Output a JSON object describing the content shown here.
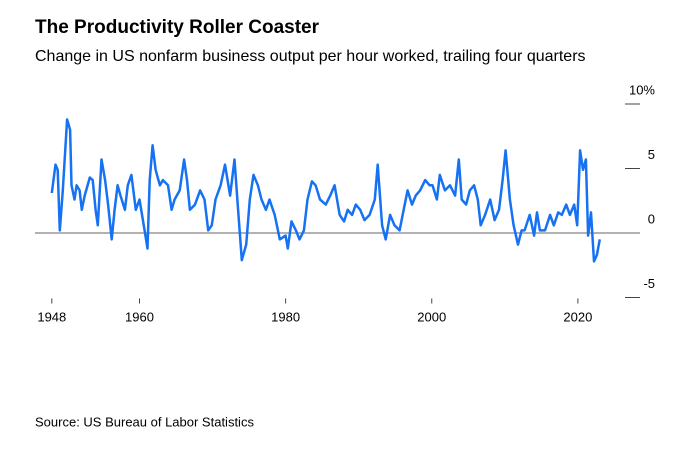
{
  "chart_data": {
    "type": "line",
    "title": "The Productivity Roller Coaster",
    "subtitle": "Change in US nonfarm business output per hour worked, trailing four quarters",
    "source": "Source: US Bureau of Labor Statistics",
    "x": [
      1948.0,
      1948.5,
      1948.8,
      1949.1,
      1949.5,
      1950.1,
      1950.5,
      1950.7,
      1951.1,
      1951.4,
      1951.8,
      1952.1,
      1952.5,
      1953.2,
      1953.6,
      1954.0,
      1954.3,
      1954.8,
      1955.3,
      1955.7,
      1956.2,
      1956.6,
      1957.0,
      1957.4,
      1958.0,
      1958.4,
      1958.9,
      1959.5,
      1960.0,
      1960.7,
      1961.1,
      1961.4,
      1961.8,
      1962.2,
      1962.8,
      1963.2,
      1963.9,
      1964.4,
      1964.8,
      1965.5,
      1966.1,
      1966.5,
      1966.9,
      1967.6,
      1968.3,
      1968.9,
      1969.4,
      1969.9,
      1970.4,
      1971.1,
      1971.7,
      1972.4,
      1973.0,
      1973.5,
      1974.0,
      1974.6,
      1975.1,
      1975.6,
      1976.2,
      1976.7,
      1977.3,
      1977.8,
      1978.5,
      1979.2,
      1980.0,
      1980.3,
      1980.8,
      1981.4,
      1981.9,
      1982.5,
      1983.0,
      1983.6,
      1984.1,
      1984.7,
      1985.5,
      1986.1,
      1986.7,
      1987.4,
      1988.0,
      1988.5,
      1989.1,
      1989.6,
      1990.2,
      1990.8,
      1991.5,
      1992.2,
      1992.6,
      1993.2,
      1993.7,
      1994.3,
      1994.9,
      1995.6,
      1996.3,
      1996.7,
      1997.3,
      1997.8,
      1998.4,
      1999.1,
      1999.7,
      2000.1,
      2000.7,
      2001.1,
      2001.8,
      2002.5,
      2003.2,
      2003.7,
      2004.1,
      2004.7,
      2005.2,
      2005.8,
      2006.3,
      2006.7,
      2007.3,
      2008.0,
      2008.6,
      2009.2,
      2009.7,
      2010.1,
      2010.7,
      2011.2,
      2011.8,
      2012.3,
      2012.7,
      2013.4,
      2014.0,
      2014.4,
      2014.8,
      2015.5,
      2016.2,
      2016.7,
      2017.3,
      2017.8,
      2018.4,
      2018.9,
      2019.5,
      2019.9,
      2020.3,
      2020.7,
      2021.1,
      2021.4,
      2021.8,
      2022.2,
      2022.6,
      2023.0
    ],
    "series": [
      {
        "color": "#1672f3",
        "values": [
          3.1,
          5.3,
          4.9,
          0.2,
          3.3,
          8.8,
          8.0,
          3.7,
          2.6,
          3.7,
          3.3,
          1.8,
          2.9,
          4.3,
          4.1,
          1.8,
          0.6,
          5.7,
          4.1,
          2.2,
          -0.5,
          1.8,
          3.7,
          2.9,
          1.8,
          3.7,
          4.5,
          1.8,
          2.6,
          0.2,
          -1.2,
          4.1,
          6.8,
          4.9,
          3.7,
          4.1,
          3.7,
          1.8,
          2.6,
          3.3,
          5.7,
          4.1,
          1.8,
          2.2,
          3.3,
          2.6,
          0.2,
          0.6,
          2.6,
          3.7,
          5.3,
          2.9,
          5.7,
          1.8,
          -2.1,
          -0.9,
          2.6,
          4.5,
          3.7,
          2.6,
          1.8,
          2.6,
          1.4,
          -0.5,
          -0.2,
          -1.2,
          0.9,
          0.2,
          -0.5,
          0.2,
          2.6,
          4.0,
          3.7,
          2.6,
          2.2,
          2.9,
          3.7,
          1.4,
          0.9,
          1.8,
          1.4,
          2.2,
          1.8,
          1.0,
          1.4,
          2.6,
          5.3,
          0.6,
          -0.5,
          1.4,
          0.6,
          0.2,
          2.2,
          3.3,
          2.2,
          2.9,
          3.3,
          4.1,
          3.7,
          3.7,
          2.6,
          4.5,
          3.3,
          3.7,
          2.9,
          5.7,
          2.6,
          2.2,
          3.3,
          3.7,
          2.6,
          0.6,
          1.4,
          2.6,
          1.0,
          1.8,
          4.1,
          6.4,
          2.6,
          0.6,
          -0.9,
          0.2,
          0.2,
          1.4,
          -0.2,
          1.6,
          0.2,
          0.2,
          1.4,
          0.6,
          1.6,
          1.4,
          2.2,
          1.4,
          2.2,
          0.6,
          6.4,
          4.9,
          5.7,
          -0.2,
          1.6,
          -2.2,
          -1.7,
          -0.5
        ]
      }
    ],
    "xlim": [
      1945.7,
      2028.5
    ],
    "xticks": [
      1948,
      1960,
      1980,
      2000,
      2020
    ],
    "ylim": [
      -5,
      10
    ],
    "yticks": [
      {
        "value": 10,
        "label": "10%"
      },
      5,
      0,
      -5
    ]
  }
}
